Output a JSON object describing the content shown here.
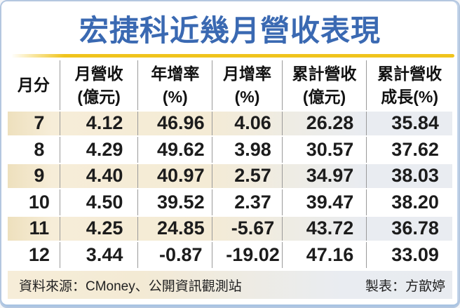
{
  "card": {
    "title": "宏捷科近幾月營收表現"
  },
  "table": {
    "headers": [
      "月分",
      "月營收\n(億元)",
      "年增率\n(%)",
      "月增率\n(%)",
      "累計營收\n(億元)",
      "累計營收\n成長(%)"
    ],
    "rows": [
      [
        "7",
        "4.12",
        "46.96",
        "4.06",
        "26.28",
        "35.84"
      ],
      [
        "8",
        "4.29",
        "49.62",
        "3.98",
        "30.57",
        "37.62"
      ],
      [
        "9",
        "4.40",
        "40.97",
        "2.57",
        "34.97",
        "38.03"
      ],
      [
        "10",
        "4.50",
        "39.52",
        "2.37",
        "39.47",
        "38.20"
      ],
      [
        "11",
        "4.25",
        "24.85",
        "-5.67",
        "43.72",
        "36.78"
      ],
      [
        "12",
        "3.44",
        "-0.87",
        "-19.02",
        "47.16",
        "33.09"
      ]
    ]
  },
  "footer": {
    "source": "資料來源：CMoney、公開資訊觀測站",
    "credit": "製表：方歆婷"
  },
  "colors": {
    "title_blue": "#3a69b2",
    "gold_rule": "#f0c41d",
    "row_tint_cream": "#f4ebd5",
    "row_tint_gray": "#e9ecf1",
    "divider_gray": "#9a9a9a",
    "card_border_blue": "#b4c7e0"
  },
  "chart_data": {
    "type": "table",
    "title": "宏捷科近幾月營收表現",
    "columns": [
      "月分",
      "月營收(億元)",
      "年增率(%)",
      "月增率(%)",
      "累計營收(億元)",
      "累計營收成長(%)"
    ],
    "rows": [
      [
        7,
        4.12,
        46.96,
        4.06,
        26.28,
        35.84
      ],
      [
        8,
        4.29,
        49.62,
        3.98,
        30.57,
        37.62
      ],
      [
        9,
        4.4,
        40.97,
        2.57,
        34.97,
        38.03
      ],
      [
        10,
        4.5,
        39.52,
        2.37,
        39.47,
        38.2
      ],
      [
        11,
        4.25,
        24.85,
        -5.67,
        43.72,
        36.78
      ],
      [
        12,
        3.44,
        -0.87,
        -19.02,
        47.16,
        33.09
      ]
    ],
    "source": "資料來源：CMoney、公開資訊觀測站",
    "credit": "製表：方歆婷"
  }
}
